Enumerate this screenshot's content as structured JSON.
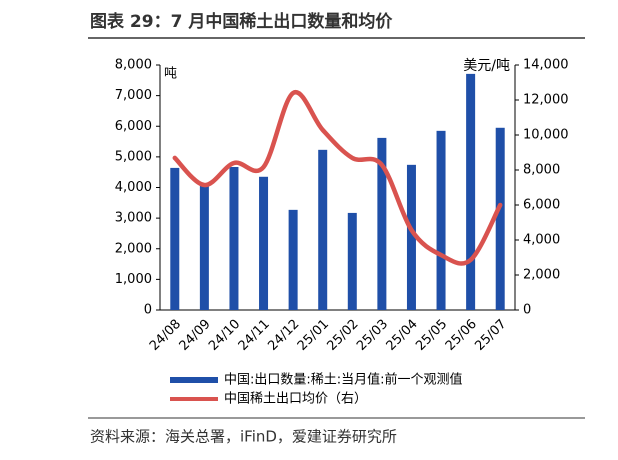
{
  "chart_data": {
    "type": "bar",
    "title": "图表 29：7 月中国稀土出口数量和均价",
    "source": "资料来源：海关总署，iFinD，爱建证券研究所",
    "y_label": "吨",
    "y2_label": "美元/吨",
    "categories": [
      "24/08",
      "24/09",
      "24/10",
      "24/11",
      "24/12",
      "25/01",
      "25/02",
      "25/03",
      "25/04",
      "25/05",
      "25/06",
      "25/07"
    ],
    "series": [
      {
        "name": "中国:出口数量:稀土:当月值:前一个观测值",
        "type": "bar",
        "color": "#1f4fa8",
        "values": [
          4640,
          4100,
          4670,
          4350,
          3270,
          5230,
          3170,
          5620,
          4740,
          5850,
          7710,
          5950
        ]
      },
      {
        "name": "中国稀土出口均价（右）",
        "type": "line",
        "axis": "y2",
        "color": "#d9534f",
        "values": [
          8690,
          7140,
          8400,
          8170,
          12400,
          10290,
          8690,
          8290,
          4570,
          3140,
          2860,
          6000
        ]
      }
    ],
    "ylim": [
      0,
      8000
    ],
    "yticks": [
      0,
      {
        "value": 1000,
        "label": "1,000"
      },
      {
        "value": 2000,
        "label": "2,000"
      },
      {
        "value": 3000,
        "label": "3,000"
      },
      {
        "value": 4000,
        "label": "4,000"
      },
      {
        "value": 5000,
        "label": "5,000"
      },
      {
        "value": 6000,
        "label": "6,000"
      },
      {
        "value": 7000,
        "label": "7,000"
      },
      {
        "value": 8000,
        "label": "8,000"
      }
    ],
    "y2lim": [
      0,
      14000
    ],
    "y2ticks": [
      0,
      {
        "value": 2000,
        "label": "2,000"
      },
      {
        "value": 4000,
        "label": "4,000"
      },
      {
        "value": 6000,
        "label": "6,000"
      },
      {
        "value": 8000,
        "label": "8,000"
      },
      {
        "value": 10000,
        "label": "10,000"
      },
      {
        "value": 12000,
        "label": "12,000"
      },
      {
        "value": 14000,
        "label": "14,000"
      }
    ]
  }
}
